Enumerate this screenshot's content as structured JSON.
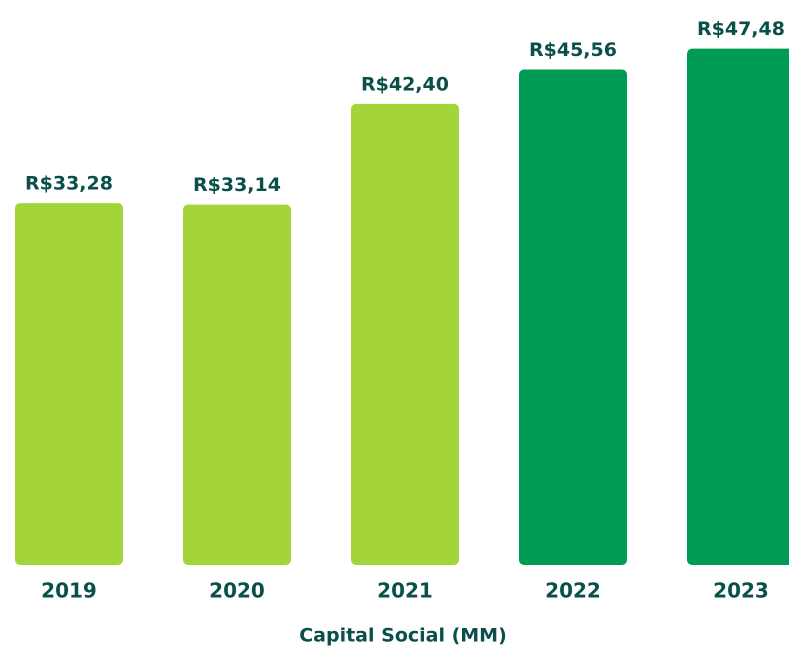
{
  "chart_data": {
    "type": "bar",
    "title": "Capital Social (MM)",
    "categories": [
      "2019",
      "2020",
      "2021",
      "2022",
      "2023"
    ],
    "values": [
      33.28,
      33.14,
      42.4,
      45.56,
      47.48
    ],
    "value_labels": [
      "R$33,28",
      "R$33,14",
      "R$42,40",
      "R$45,56",
      "R$47,48"
    ],
    "colors": [
      "#a3d43a",
      "#a3d43a",
      "#a3d43a",
      "#009b55",
      "#009b55"
    ],
    "ylim": [
      0,
      48
    ]
  }
}
